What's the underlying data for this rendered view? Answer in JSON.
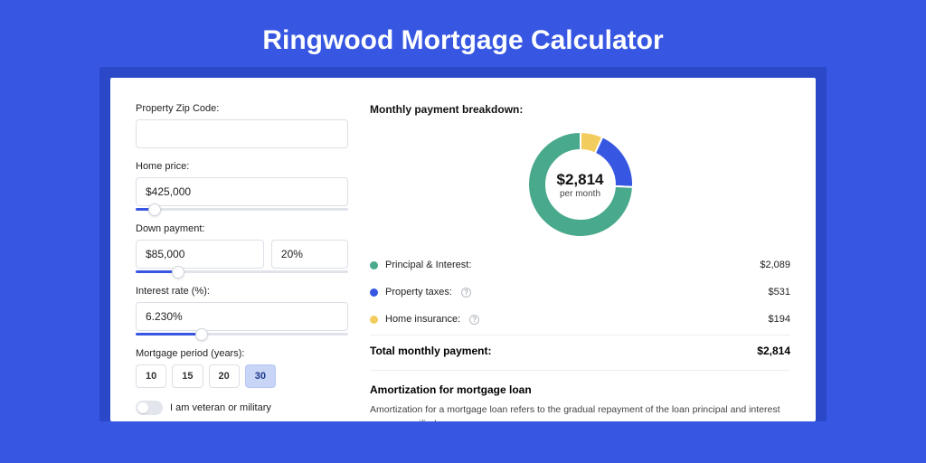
{
  "page": {
    "title": "Ringwood Mortgage Calculator",
    "background_color": "#3757e2",
    "outer_card_color": "#2a48c8",
    "card_color": "#ffffff"
  },
  "inputs": {
    "zip": {
      "label": "Property Zip Code:",
      "value": ""
    },
    "home_price": {
      "label": "Home price:",
      "value": "$425,000",
      "slider_pct": 9
    },
    "down_payment": {
      "label": "Down payment:",
      "amount": "$85,000",
      "percent": "20%",
      "slider_pct": 20
    },
    "interest_rate": {
      "label": "Interest rate (%):",
      "value": "6.230%",
      "slider_pct": 31
    },
    "period": {
      "label": "Mortgage period (years):",
      "options": [
        "10",
        "15",
        "20",
        "30"
      ],
      "selected": "30"
    },
    "veteran": {
      "label": "I am veteran or military",
      "checked": false
    }
  },
  "breakdown": {
    "title": "Monthly payment breakdown:",
    "donut": {
      "amount": "$2,814",
      "sub": "per month",
      "slices": [
        {
          "key": "principal_interest",
          "color": "#49a98c",
          "pct": 74.2
        },
        {
          "key": "property_taxes",
          "color": "#3757e2",
          "pct": 18.9
        },
        {
          "key": "home_insurance",
          "color": "#f2cd5d",
          "pct": 6.9
        }
      ]
    },
    "items": [
      {
        "label": "Principal & Interest:",
        "value": "$2,089",
        "color": "#49a98c",
        "info": false
      },
      {
        "label": "Property taxes:",
        "value": "$531",
        "color": "#3757e2",
        "info": true
      },
      {
        "label": "Home insurance:",
        "value": "$194",
        "color": "#f2cd5d",
        "info": true
      }
    ],
    "total": {
      "label": "Total monthly payment:",
      "value": "$2,814"
    }
  },
  "amortization": {
    "title": "Amortization for mortgage loan",
    "text": "Amortization for a mortgage loan refers to the gradual repayment of the loan principal and interest over a specified"
  }
}
